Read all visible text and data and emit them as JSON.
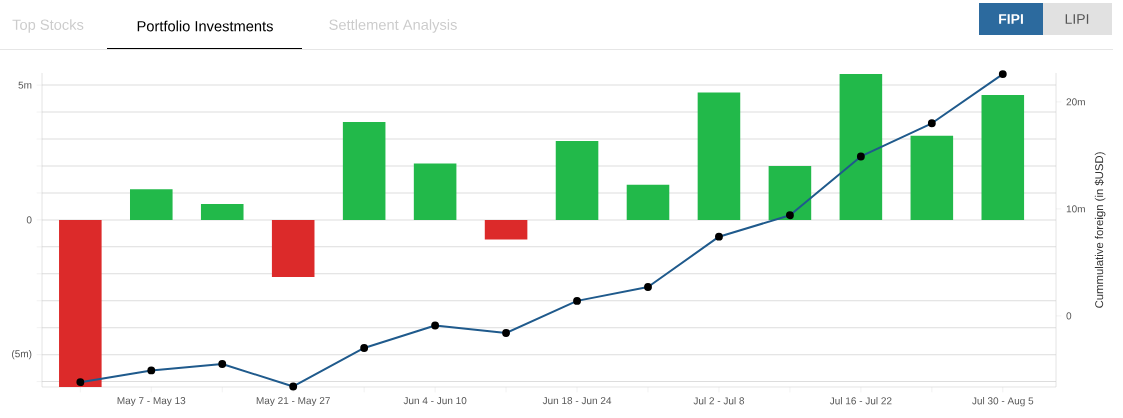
{
  "chart_data": {
    "type": "bar",
    "categories": [
      null,
      "May 7 - May 13",
      null,
      "May 21 - May 27",
      null,
      "Jun 4 - Jun 10",
      null,
      "Jun 18 - Jun 24",
      null,
      "Jul 2 - Jul 8",
      null,
      "Jul 16 - Jul 22",
      null,
      "Jul 30 - Aug 5"
    ],
    "series": [
      {
        "values": [
          -6.2,
          1.14,
          0.59,
          -2.12,
          3.63,
          2.09,
          -0.73,
          2.93,
          1.3,
          4.73,
          2.0,
          5.41,
          3.12,
          4.63
        ],
        "colors": [
          "#dc2a2a",
          "#22b94a",
          "#22b94a",
          "#dc2a2a",
          "#22b94a",
          "#22b94a",
          "#dc2a2a",
          "#22b94a",
          "#22b94a",
          "#22b94a",
          "#22b94a",
          "#22b94a",
          "#22b94a",
          "#22b94a"
        ]
      },
      {
        "type": "line",
        "axis": "y2",
        "color": "#1f5a8c",
        "marker": "circle",
        "values": [
          -6.2,
          -5.1,
          -4.5,
          -6.6,
          -3.0,
          -0.9,
          -1.6,
          1.4,
          2.7,
          7.4,
          9.4,
          14.9,
          18.0,
          22.6
        ]
      }
    ],
    "ylim": [
      -6.2,
      5.45
    ],
    "yticks": [
      {
        "value": -6,
        "label": null
      },
      {
        "value": -5,
        "label": "(5m)"
      },
      {
        "value": -4,
        "label": null
      },
      {
        "value": -3,
        "label": null
      },
      {
        "value": -2,
        "label": null
      },
      {
        "value": -1,
        "label": null
      },
      0,
      {
        "value": 1,
        "label": null
      },
      {
        "value": 2,
        "label": null
      },
      {
        "value": 3,
        "label": null
      },
      {
        "value": 4,
        "label": null
      },
      {
        "value": 5,
        "label": "5m"
      }
    ],
    "y2lim": [
      -6.65,
      22.7
    ],
    "y2ticks": [
      0,
      {
        "value": 10,
        "label": "10m"
      },
      {
        "value": 20,
        "label": "20m"
      }
    ],
    "y2label": "Cummulative foreign (in $USD)",
    "grid": "y",
    "annotations": [
      "Top Stocks",
      "Portfolio Investments",
      "Settlement Analysis",
      "FIPI",
      "LIPI"
    ]
  }
}
